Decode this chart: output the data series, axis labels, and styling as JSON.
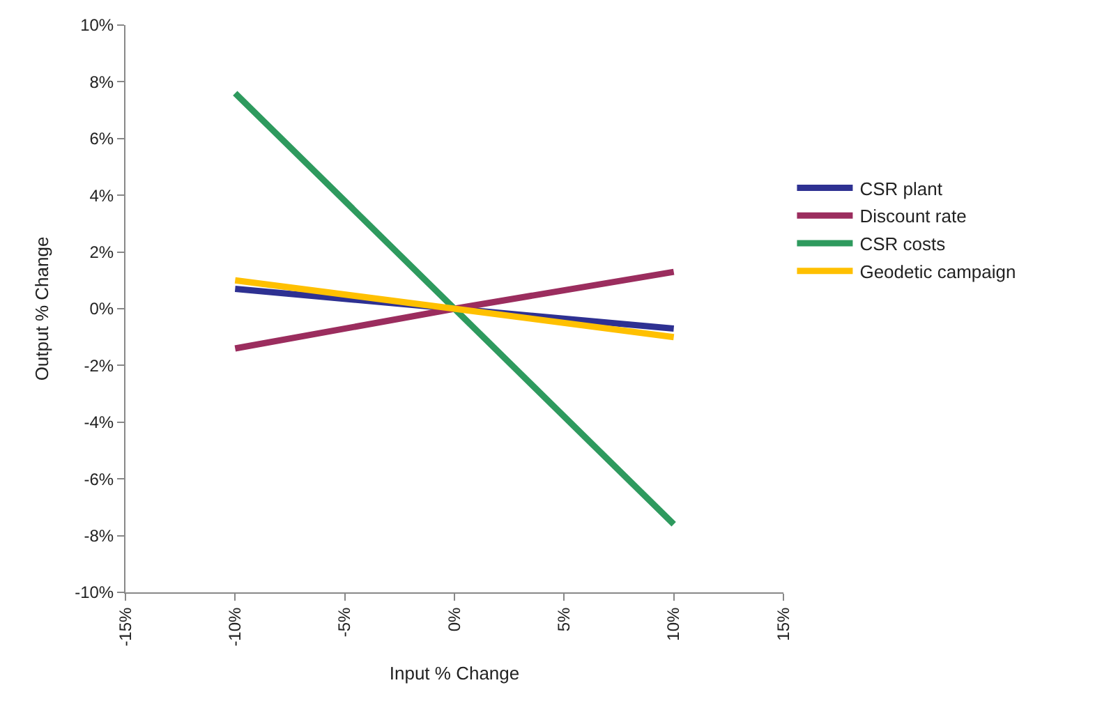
{
  "chart_data": {
    "type": "line",
    "xlabel": "Input % Change",
    "ylabel": "Output % Change",
    "x": [
      -10,
      0,
      10
    ],
    "series": [
      {
        "name": "CSR plant",
        "color": "#2e3192",
        "values": [
          0.7,
          0,
          -0.7
        ]
      },
      {
        "name": "Discount rate",
        "color": "#9b2d5e",
        "values": [
          -1.4,
          0,
          1.3
        ]
      },
      {
        "name": "CSR costs",
        "color": "#2e9a5e",
        "values": [
          7.6,
          0,
          -7.6
        ]
      },
      {
        "name": "Geodetic campaign",
        "color": "#ffc000",
        "values": [
          1.0,
          0,
          -1.0
        ]
      }
    ],
    "xlim": [
      -15,
      15
    ],
    "xticks": [
      {
        "value": -15,
        "label": "-15%"
      },
      {
        "value": -10,
        "label": "-10%"
      },
      {
        "value": -5,
        "label": "-5%"
      },
      {
        "value": 0,
        "label": "0%"
      },
      {
        "value": 5,
        "label": "5%"
      },
      {
        "value": 10,
        "label": "10%"
      },
      {
        "value": 15,
        "label": "15%"
      }
    ],
    "ylim": [
      -10,
      10
    ],
    "yticks": [
      {
        "value": -10,
        "label": "-10%"
      },
      {
        "value": -8,
        "label": "-8%"
      },
      {
        "value": -6,
        "label": "-6%"
      },
      {
        "value": -4,
        "label": "-4%"
      },
      {
        "value": -2,
        "label": "-2%"
      },
      {
        "value": 0,
        "label": "0%"
      },
      {
        "value": 2,
        "label": "2%"
      },
      {
        "value": 4,
        "label": "4%"
      },
      {
        "value": 6,
        "label": "6%"
      },
      {
        "value": 8,
        "label": "8%"
      },
      {
        "value": 10,
        "label": "10%"
      }
    ],
    "legend": "right",
    "marker": "none",
    "line_style": "solid"
  }
}
